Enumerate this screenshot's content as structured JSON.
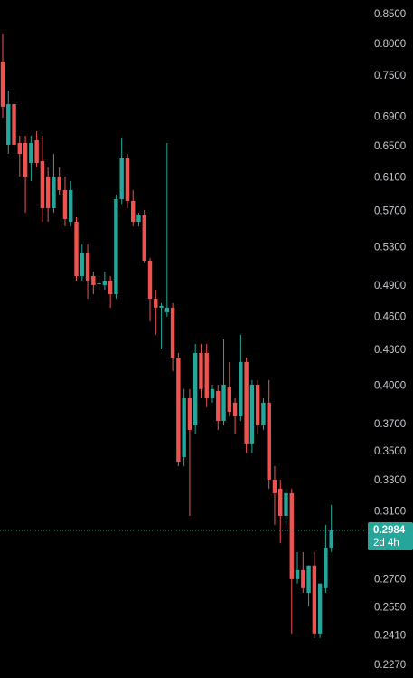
{
  "chart_data": {
    "type": "candlestick",
    "log_scale": true,
    "up_color": "#26a69a",
    "down_color": "#ef5350",
    "ylim": [
      0.2212,
      0.8754
    ],
    "yticks": [
      {
        "value": 0.85,
        "label": "0.8500"
      },
      {
        "value": 0.8,
        "label": "0.8000"
      },
      {
        "value": 0.75,
        "label": "0.7500"
      },
      {
        "value": 0.69,
        "label": "0.6900"
      },
      {
        "value": 0.65,
        "label": "0.6500"
      },
      {
        "value": 0.61,
        "label": "0.6100"
      },
      {
        "value": 0.57,
        "label": "0.5700"
      },
      {
        "value": 0.53,
        "label": "0.5300"
      },
      {
        "value": 0.49,
        "label": "0.4900"
      },
      {
        "value": 0.46,
        "label": "0.4600"
      },
      {
        "value": 0.43,
        "label": "0.4300"
      },
      {
        "value": 0.4,
        "label": "0.4000"
      },
      {
        "value": 0.37,
        "label": "0.3700"
      },
      {
        "value": 0.35,
        "label": "0.3500"
      },
      {
        "value": 0.33,
        "label": "0.3300"
      },
      {
        "value": 0.31,
        "label": "0.3100"
      },
      {
        "value": 0.27,
        "label": "0.2700"
      },
      {
        "value": 0.255,
        "label": "0.2550"
      },
      {
        "value": 0.241,
        "label": "0.2410"
      },
      {
        "value": 0.227,
        "label": "0.2270"
      }
    ],
    "last_price": 0.2984,
    "countdown": "2d 4h",
    "open": [
      0.7726,
      0.6526,
      0.7087,
      0.6549,
      0.6549,
      0.629,
      0.6586,
      0.6313,
      0.6119,
      0.5738,
      0.6119,
      0.5953,
      0.5582,
      0.5582,
      0.5,
      0.5235,
      0.5,
      0.4917,
      0.4909,
      0.4954,
      0.4819,
      0.5844,
      0.6348,
      0.5823,
      0.5582,
      0.5665,
      0.5158,
      0.4775,
      0.4689,
      0.4646,
      0.4689,
      0.4238,
      0.3463,
      0.3902,
      0.3693,
      0.4277,
      0.4277,
      0.3902,
      0.396,
      0.3727,
      0.3989,
      0.3867,
      0.3761,
      0.42,
      0.356,
      0.4011,
      0.3693,
      0.3867,
      0.3307,
      0.3248,
      0.3073,
      0.3218,
      0.2703,
      0.2753,
      0.2629,
      0.2779,
      0.2421,
      0.2654,
      0.2882
    ],
    "high": [
      0.8163,
      0.7285,
      0.7285,
      0.6646,
      0.6646,
      0.6646,
      0.6707,
      0.6646,
      0.6232,
      0.6406,
      0.6232,
      0.6119,
      0.6063,
      0.5634,
      0.5332,
      0.5332,
      0.5046,
      0.5,
      0.5046,
      0.5,
      0.5898,
      0.6622,
      0.6406,
      0.5953,
      0.5686,
      0.5717,
      0.5187,
      0.4864,
      0.4732,
      0.6549,
      0.4732,
      0.4277,
      0.3975,
      0.3975,
      0.4357,
      0.4357,
      0.4357,
      0.4011,
      0.4011,
      0.4397,
      0.42,
      0.3902,
      0.4437,
      0.4238,
      0.4049,
      0.4049,
      0.3902,
      0.4049,
      0.34,
      0.3307,
      0.3248,
      0.3248,
      0.2856,
      0.2856,
      0.2779,
      0.2856,
      0.2679,
      0.3018,
      0.3142
    ],
    "low": [
      0.6895,
      0.6406,
      0.6406,
      0.6119,
      0.5686,
      0.6063,
      0.6232,
      0.5582,
      0.5582,
      0.5686,
      0.5898,
      0.5531,
      0.5531,
      0.4954,
      0.4954,
      0.4775,
      0.4819,
      0.4864,
      0.4864,
      0.4689,
      0.4775,
      0.5791,
      0.5738,
      0.5531,
      0.5531,
      0.5139,
      0.4561,
      0.4437,
      0.4317,
      0.4604,
      0.4123,
      0.34,
      0.34,
      0.3073,
      0.3626,
      0.3902,
      0.3831,
      0.3867,
      0.3659,
      0.3693,
      0.3761,
      0.3626,
      0.3727,
      0.3495,
      0.3495,
      0.3626,
      0.3659,
      0.3248,
      0.3018,
      0.2909,
      0.3018,
      0.2421,
      0.2679,
      0.2629,
      0.2558,
      0.2399,
      0.2399,
      0.2629,
      0.2856
    ],
    "close": [
      0.7049,
      0.7087,
      0.6526,
      0.6406,
      0.6119,
      0.6549,
      0.629,
      0.5738,
      0.5738,
      0.6119,
      0.5953,
      0.5613,
      0.5953,
      0.5,
      0.5235,
      0.4954,
      0.4909,
      0.4927,
      0.4954,
      0.4819,
      0.5844,
      0.6348,
      0.5823,
      0.5582,
      0.5665,
      0.5158,
      0.4775,
      0.4689,
      0.4706,
      0.4689,
      0.4238,
      0.3431,
      0.3902,
      0.3659,
      0.4277,
      0.3975,
      0.3902,
      0.3975,
      0.3727,
      0.4011,
      0.3796,
      0.3761,
      0.42,
      0.356,
      0.4011,
      0.3693,
      0.3867,
      0.3307,
      0.3218,
      0.3073,
      0.3218,
      0.2703,
      0.2753,
      0.2654,
      0.2779,
      0.2421,
      0.2679,
      0.2882,
      0.2984
    ]
  }
}
